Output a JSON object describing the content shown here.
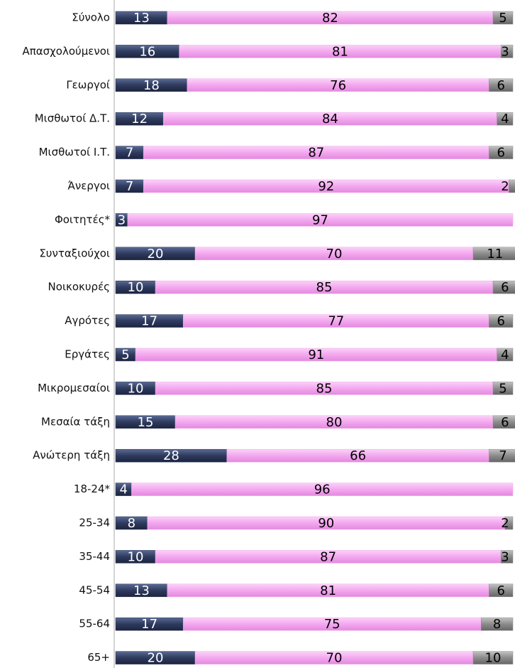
{
  "chart_data": {
    "type": "stacked-bar-horizontal",
    "categories": [
      "Σύνολο",
      "Απασχολούμενοι",
      "Γεωργοί",
      "Μισθωτοί Δ.Τ.",
      "Μισθωτοί Ι.Τ.",
      "Άνεργοι",
      "Φοιτητές*",
      "Συνταξιούχοι",
      "Νοικοκυρές",
      "Αγρότες",
      "Εργάτες",
      "Μικρομεσαίοι",
      "Μεσαία τάξη",
      "Ανώτερη τάξη",
      "18-24*",
      "25-34",
      "35-44",
      "45-54",
      "55-64",
      "65+"
    ],
    "series": [
      {
        "color": "#2f3b5e",
        "values": [
          13,
          16,
          18,
          12,
          7,
          7,
          3,
          20,
          10,
          17,
          5,
          10,
          15,
          28,
          4,
          8,
          10,
          13,
          17,
          20
        ]
      },
      {
        "color": "#f3a8ef",
        "values": [
          82,
          81,
          76,
          84,
          87,
          92,
          97,
          70,
          85,
          77,
          91,
          85,
          80,
          66,
          96,
          90,
          87,
          81,
          75,
          70
        ]
      },
      {
        "color": "#8c8c8c",
        "values": [
          5,
          3,
          6,
          4,
          6,
          2,
          null,
          11,
          6,
          6,
          4,
          5,
          6,
          7,
          null,
          2,
          3,
          6,
          8,
          10
        ]
      }
    ],
    "xlim": [
      0,
      100
    ]
  }
}
